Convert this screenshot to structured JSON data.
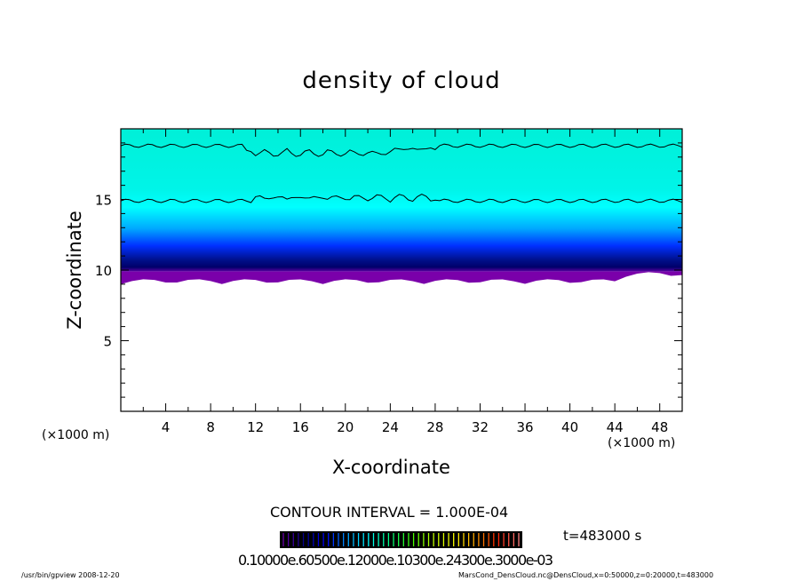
{
  "chart_data": {
    "type": "heatmap",
    "title": "density of cloud",
    "xlabel": "X-coordinate",
    "ylabel": "Z-coordinate",
    "x_unit": "(×1000 m)",
    "y_unit": "(×1000 m)",
    "xlim": [
      0,
      50
    ],
    "ylim": [
      0,
      20
    ],
    "x_ticks": [
      4,
      8,
      12,
      16,
      20,
      24,
      28,
      32,
      36,
      40,
      44,
      48
    ],
    "y_ticks": [
      5,
      10,
      15
    ],
    "contour_interval": "CONTOUR INTERVAL = 1.000E-04",
    "time_label": "t=483000  s",
    "colorbar_labels": "0.10000e-05 0.6000e-04 0.1200e-03 0.1800e-03 0.2400e-03 0.3000e-03",
    "colorbar_label_rendered": "0.10000e.60500e.12000e.10300e.24300e.3000e-03",
    "colormap": [
      "#6a00a8",
      "#00008a",
      "#0000ff",
      "#00a0ff",
      "#00ffff",
      "#00ff80",
      "#40ff00",
      "#c0ff00",
      "#ffff00",
      "#ffa000",
      "#ff2000",
      "#ff8080"
    ],
    "field_layers": [
      {
        "z_from": 9.0,
        "z_to": 9.9,
        "color": "#7a00aa"
      },
      {
        "z_from": 9.9,
        "z_to": 11,
        "color": "#00007a"
      },
      {
        "z_from": 11,
        "z_to": 13.5,
        "color": "#0040ff"
      },
      {
        "z_from": 13.5,
        "z_to": 15,
        "color": "#00f4ff"
      },
      {
        "z_from": 15,
        "z_to": 20,
        "color": "#00f0d8"
      }
    ],
    "contour_levels_z": [
      18.8,
      14.9
    ]
  },
  "footer": {
    "left": "/usr/bin/gpview   2008-12-20",
    "right": "MarsCond_DensCloud.nc@DensCloud,x=0:50000,z=0:20000,t=483000"
  }
}
